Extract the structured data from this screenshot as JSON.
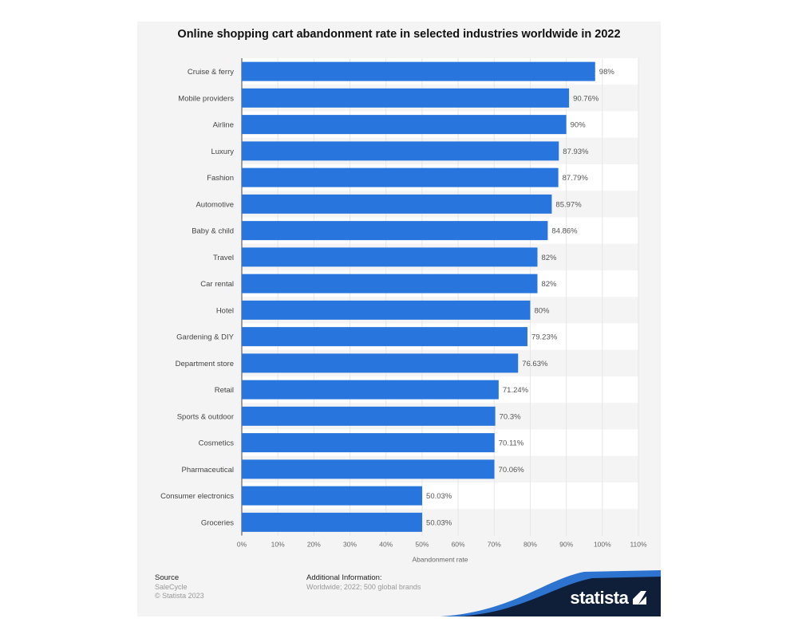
{
  "chart_data": {
    "type": "bar",
    "orientation": "horizontal",
    "title": "Online shopping cart abandonment rate in selected industries worldwide in 2022",
    "xlabel": "Abandonment rate",
    "ylabel": "",
    "xlim": [
      0,
      110
    ],
    "ticks": [
      "0%",
      "10%",
      "20%",
      "30%",
      "40%",
      "50%",
      "60%",
      "70%",
      "80%",
      "90%",
      "100%",
      "110%"
    ],
    "grid": true,
    "bar_color": "#2876dd",
    "categories": [
      "Cruise & ferry",
      "Mobile providers",
      "Airline",
      "Luxury",
      "Fashion",
      "Automotive",
      "Baby & child",
      "Travel",
      "Car rental",
      "Hotel",
      "Gardening & DIY",
      "Department store",
      "Retail",
      "Sports & outdoor",
      "Cosmetics",
      "Pharmaceutical",
      "Consumer electronics",
      "Groceries"
    ],
    "values": [
      98,
      90.76,
      90,
      87.93,
      87.79,
      85.97,
      84.86,
      82,
      82,
      80,
      79.23,
      76.63,
      71.24,
      70.3,
      70.11,
      70.06,
      50.03,
      50.03
    ],
    "data_labels": [
      "98%",
      "90.76%",
      "90%",
      "87.93%",
      "87.79%",
      "85.97%",
      "84.86%",
      "82%",
      "82%",
      "80%",
      "79.23%",
      "76.63%",
      "71.24%",
      "70.3%",
      "70.11%",
      "70.06%",
      "50.03%",
      "50.03%"
    ]
  },
  "footer": {
    "source_heading": "Source",
    "source": "SaleCycle",
    "copyright": "© Statista 2023",
    "info_heading": "Additional Information:",
    "info": "Worldwide; 2022; 500 global brands",
    "brand": "statista"
  }
}
